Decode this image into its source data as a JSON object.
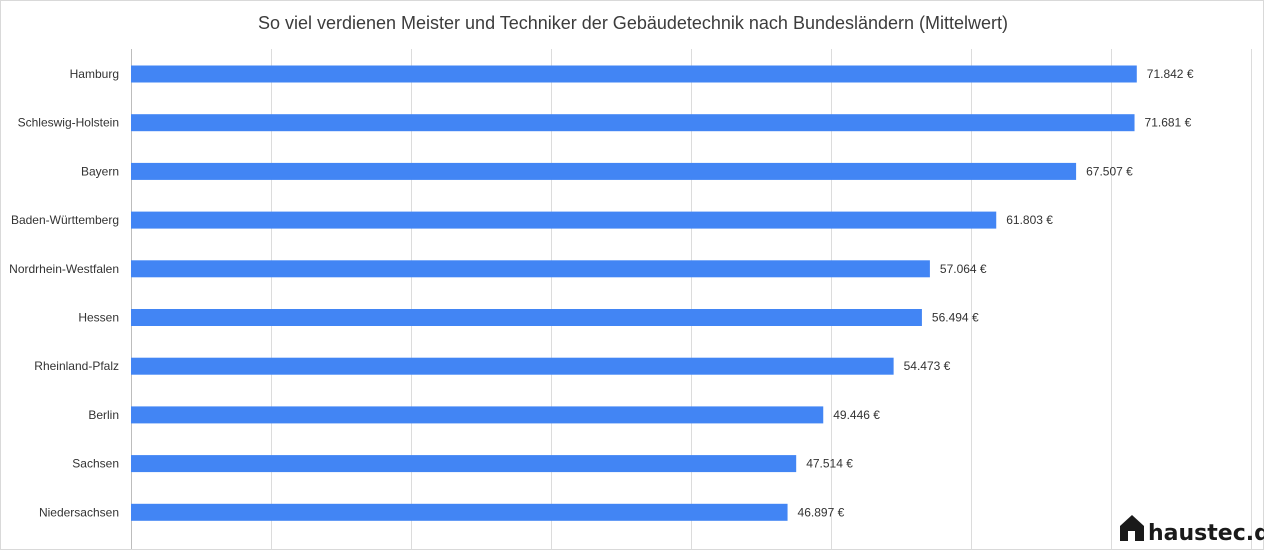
{
  "chart_data": {
    "type": "bar",
    "orientation": "horizontal",
    "title": "So viel verdienen Meister und Techniker der Gebäudetechnik nach  Bundesländern (Mittelwert)",
    "xlabel": "",
    "ylabel": "",
    "categories": [
      "Hamburg",
      "Schleswig-Holstein",
      "Bayern",
      "Baden-Württemberg",
      "Nordrhein-Westfalen",
      "Hessen",
      "Rheinland-Pfalz",
      "Berlin",
      "Sachsen",
      "Niedersachsen"
    ],
    "values": [
      71842,
      71681,
      67507,
      61803,
      57064,
      56494,
      54473,
      49446,
      47514,
      46897
    ],
    "value_labels": [
      "71.842 €",
      "71.681 €",
      "67.507 €",
      "61.803 €",
      "57.064 €",
      "56.494 €",
      "54.473 €",
      "49.446 €",
      "47.514 €",
      "46.897 €"
    ],
    "xlim": [
      0,
      80000
    ],
    "grid": true,
    "legend": "none",
    "bar_color": "#4285f4"
  },
  "brand": {
    "name": "haustec.de",
    "icon": "house-logo-icon"
  }
}
